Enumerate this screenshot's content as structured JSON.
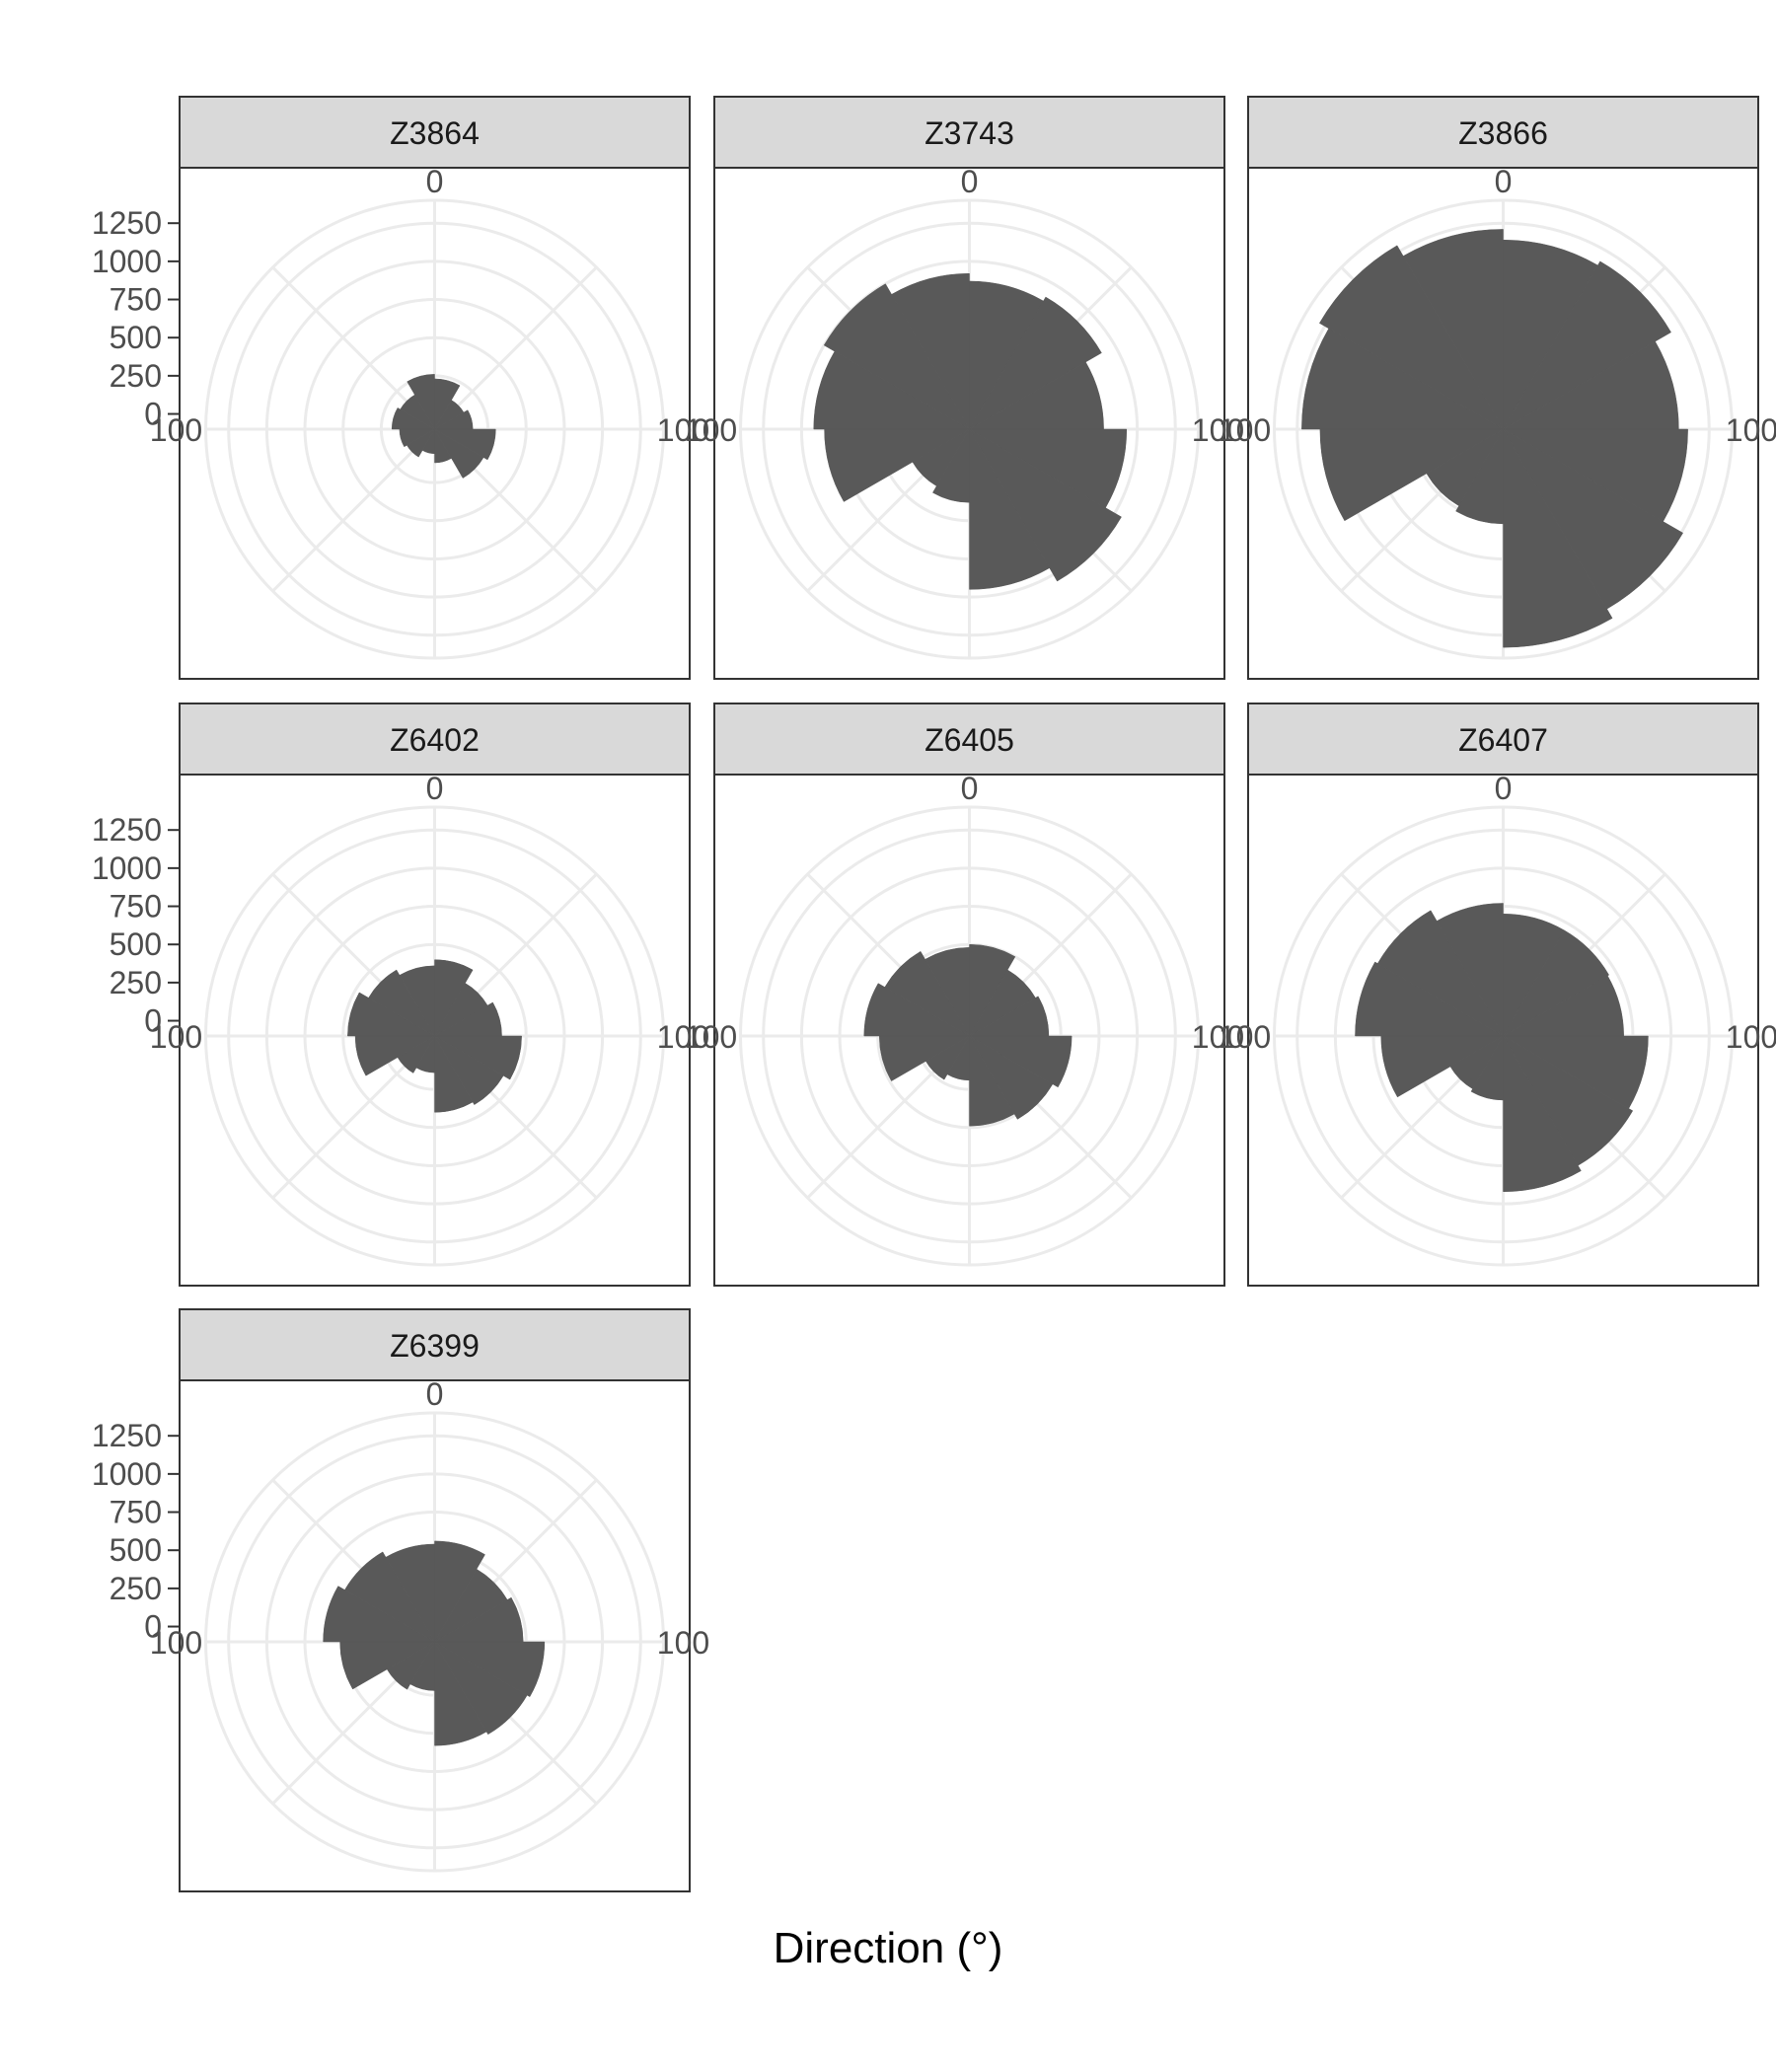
{
  "chart_data": {
    "type": "polar-bar",
    "xlabel": "Direction (°)",
    "ylabel": "",
    "radial_ticks": [
      "1250",
      "1000",
      "750",
      "500",
      "250",
      "0"
    ],
    "radial_tick_values": [
      1250,
      1000,
      750,
      500,
      250,
      0
    ],
    "radial_range": [
      -100,
      1400
    ],
    "direction_labels": {
      "top": "0",
      "left": "100",
      "right": "100"
    },
    "panel_background": "#ffffff",
    "strip_fill": "#d9d9d9",
    "bar_fill": "#595959",
    "grid_color": "#ebebeb",
    "grid": true,
    "sector_start_deg": [
      0,
      30,
      60,
      90,
      120,
      150,
      180,
      210,
      240,
      270,
      300,
      330
    ],
    "panels": [
      {
        "label": "Z3864",
        "values": [
          230,
          120,
          150,
          300,
          270,
          120,
          60,
          110,
          130,
          180,
          160,
          260
        ]
      },
      {
        "label": "Z3743",
        "values": [
          870,
          900,
          780,
          930,
          1050,
          950,
          380,
          330,
          850,
          920,
          1000,
          920
        ]
      },
      {
        "label": "Z3866",
        "values": [
          1140,
          1170,
          1050,
          1110,
          1260,
          1330,
          520,
          480,
          1100,
          1220,
          1290,
          1210
        ]
      },
      {
        "label": "Z6402",
        "values": [
          400,
          300,
          340,
          470,
          420,
          400,
          140,
          180,
          420,
          470,
          400,
          360
        ]
      },
      {
        "label": "Z6405",
        "values": [
          500,
          400,
          420,
          570,
          530,
          490,
          190,
          230,
          490,
          590,
          540,
          480
        ]
      },
      {
        "label": "Z6407",
        "values": [
          700,
          700,
          690,
          850,
          880,
          920,
          320,
          300,
          700,
          870,
          850,
          770
        ]
      },
      {
        "label": "Z6399",
        "values": [
          560,
          450,
          480,
          620,
          600,
          580,
          220,
          260,
          520,
          630,
          580,
          540
        ]
      }
    ]
  }
}
